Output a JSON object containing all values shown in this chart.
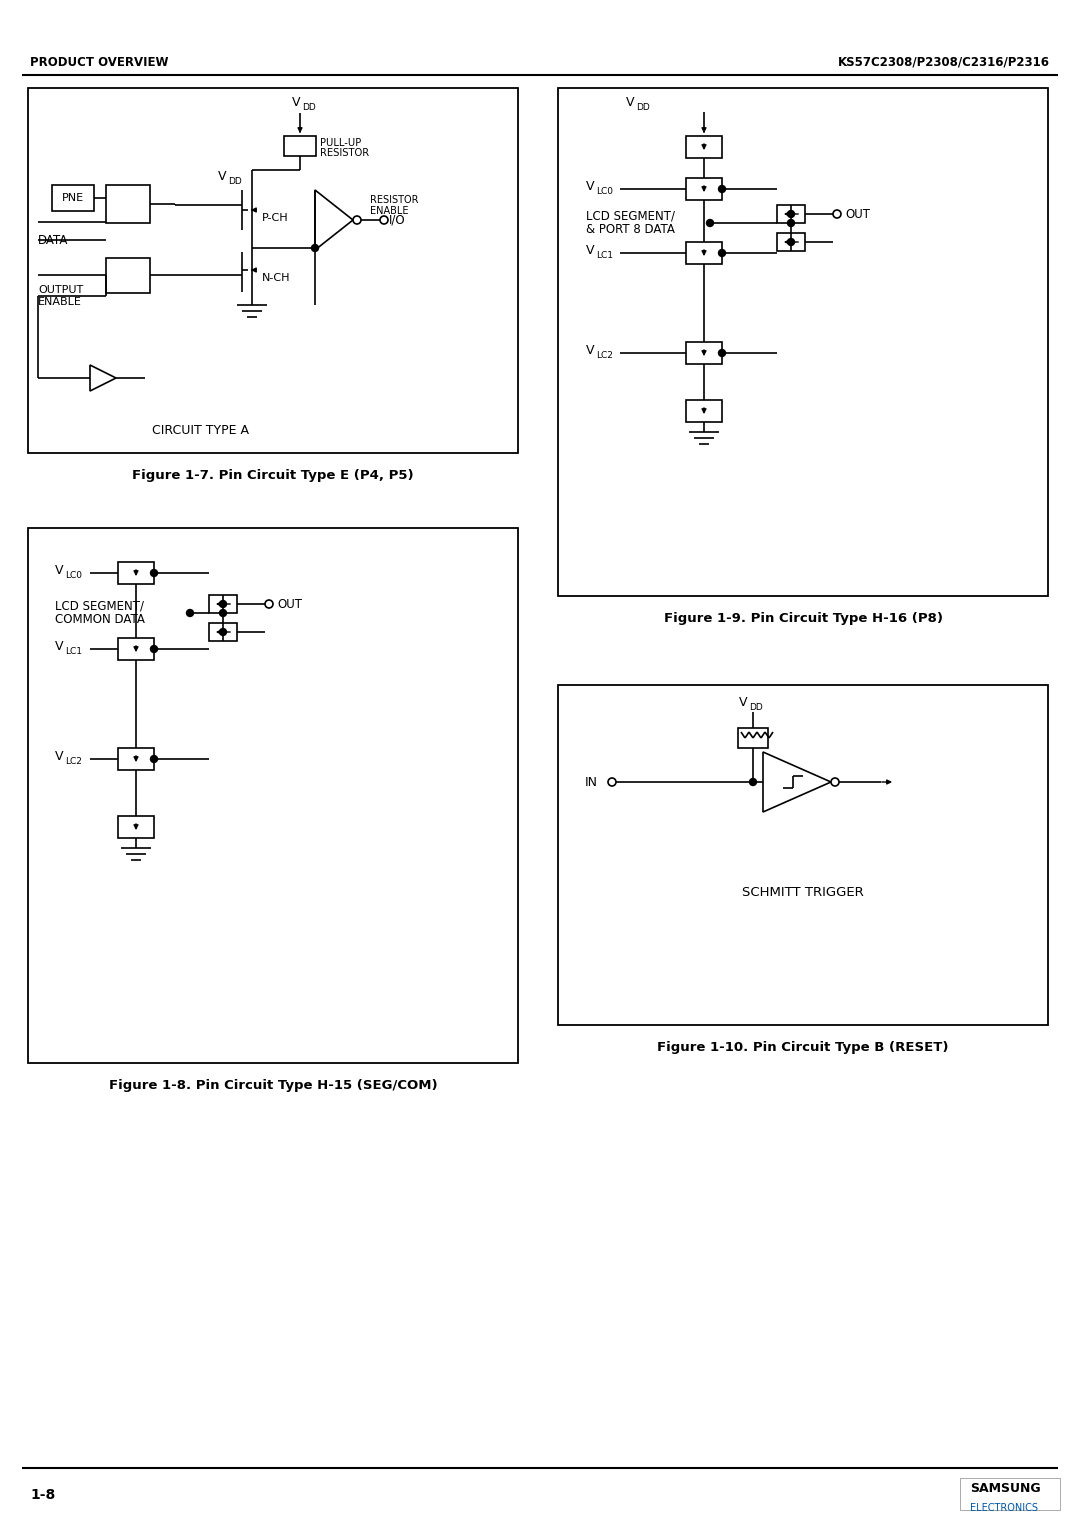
{
  "page_title_left": "PRODUCT OVERVIEW",
  "page_title_right": "KS57C2308/P2308/C2316/P2316",
  "page_number": "1-8",
  "fig7_caption": "Figure 1-7. Pin Circuit Type E (P4, P5)",
  "fig8_caption": "Figure 1-8. Pin Circuit Type H-15 (SEG/COM)",
  "fig9_caption": "Figure 1-9. Pin Circuit Type H-16 (P8)",
  "fig10_caption": "Figure 1-10. Pin Circuit Type B (RESET)",
  "bg_color": "#ffffff"
}
